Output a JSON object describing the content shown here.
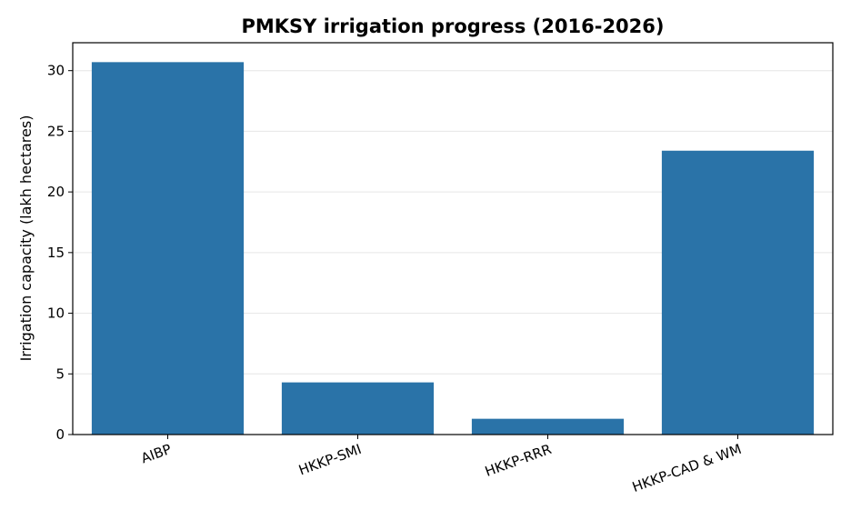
{
  "chart_data": {
    "type": "bar",
    "title": "PMKSY irrigation progress (2016-2026)",
    "xlabel": "",
    "ylabel": "Irrigation capacity (lakh hectares)",
    "categories": [
      "AIBP",
      "HKKP-SMI",
      "HKKP-RRR",
      "HKKP-CAD & WM"
    ],
    "values": [
      30.7,
      4.3,
      1.3,
      23.4
    ],
    "ylim": [
      0,
      32.3
    ],
    "yticks": [
      0,
      5,
      10,
      15,
      20,
      25,
      30
    ],
    "grid": "horizontal",
    "bar_color": "#2a73a8"
  }
}
